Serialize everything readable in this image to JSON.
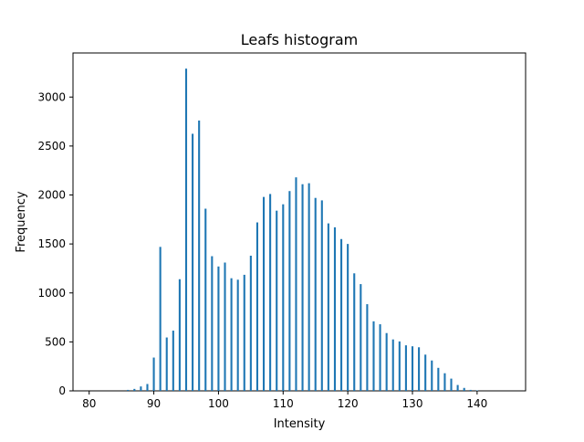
{
  "chart_data": {
    "type": "bar",
    "title": "Leafs histogram",
    "xlabel": "Intensity",
    "ylabel": "Frequency",
    "xlim": [
      77.5,
      147.5
    ],
    "ylim": [
      0,
      3450
    ],
    "x_ticks": [
      80,
      90,
      100,
      110,
      120,
      130,
      140
    ],
    "y_ticks": [
      0,
      500,
      1000,
      1500,
      2000,
      2500,
      3000
    ],
    "grid": false,
    "legend": "none",
    "bar_color": "#1f77b4",
    "x": [
      86,
      87,
      88,
      89,
      90,
      91,
      92,
      93,
      94,
      95,
      96,
      97,
      98,
      99,
      100,
      101,
      102,
      103,
      104,
      105,
      106,
      107,
      108,
      109,
      110,
      111,
      112,
      113,
      114,
      115,
      116,
      117,
      118,
      119,
      120,
      121,
      122,
      123,
      124,
      125,
      126,
      127,
      128,
      129,
      130,
      131,
      132,
      133,
      134,
      135,
      136,
      137,
      138,
      139,
      140
    ],
    "values": [
      10,
      20,
      45,
      70,
      340,
      1470,
      545,
      615,
      1140,
      3290,
      2625,
      2760,
      1860,
      1375,
      1270,
      1310,
      1150,
      1135,
      1185,
      1380,
      1720,
      1980,
      2010,
      1840,
      1905,
      2040,
      2180,
      2110,
      2120,
      1970,
      1945,
      1710,
      1670,
      1550,
      1500,
      1200,
      1090,
      885,
      710,
      680,
      590,
      525,
      505,
      465,
      455,
      445,
      370,
      310,
      235,
      180,
      125,
      60,
      30,
      10,
      5
    ]
  }
}
